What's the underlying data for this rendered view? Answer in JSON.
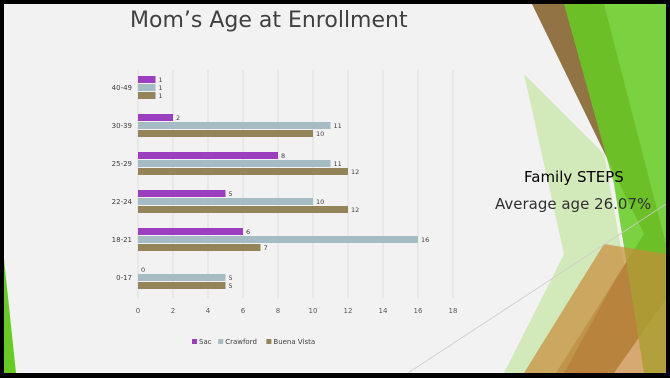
{
  "slide": {
    "side_title": "Family STEPS",
    "side_subtitle": "Average age 26.07%"
  },
  "colors": {
    "sac": "#9b3fc0",
    "crawford": "#a6bcc4",
    "buena_vista": "#93845a",
    "accent_green": "#66cc22",
    "accent_brown": "#8b6b3a"
  },
  "chart_data": {
    "type": "bar",
    "orientation": "horizontal",
    "title": "Mom’s Age at Enrollment",
    "categories": [
      "40-49",
      "30-39",
      "25-29",
      "22-24",
      "18-21",
      "0-17"
    ],
    "series": [
      {
        "name": "Sac",
        "color": "#9b3fc0",
        "values": [
          1,
          2,
          8,
          5,
          6,
          0
        ]
      },
      {
        "name": "Crawford",
        "color": "#a6bcc4",
        "values": [
          1,
          11,
          11,
          10,
          16,
          5
        ]
      },
      {
        "name": "Buena Vista",
        "color": "#93845a",
        "values": [
          1,
          10,
          12,
          12,
          7,
          5
        ]
      }
    ],
    "xlim": [
      0,
      18
    ],
    "x_ticks": [
      "0",
      "2",
      "4",
      "6",
      "8",
      "10",
      "12",
      "14",
      "16",
      "18"
    ],
    "grid": true,
    "legend": "bottom",
    "data_labels": true
  }
}
